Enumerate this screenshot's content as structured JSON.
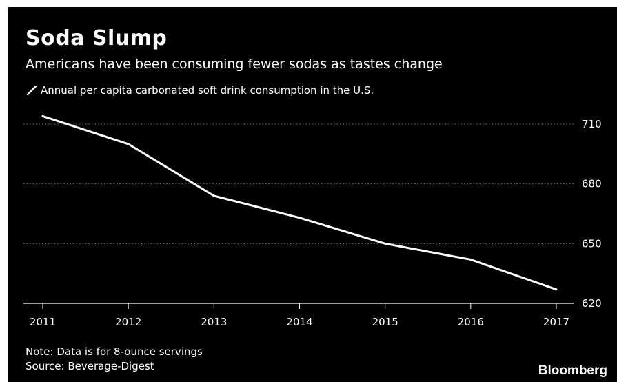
{
  "header": {
    "title": "Soda Slump",
    "subtitle": "Americans have been consuming fewer sodas as tastes change"
  },
  "footer": {
    "note": "Note: Data is for 8-ounce servings",
    "source": "Source: Beverage-Digest",
    "brand": "Bloomberg"
  },
  "colors": {
    "background": "#000000",
    "line": "#ffffff",
    "gridline": "#777777"
  },
  "chart_data": {
    "type": "line",
    "title": "Soda Slump",
    "subtitle": "Americans have been consuming fewer sodas as tastes change",
    "xlabel": "",
    "ylabel": "",
    "x": [
      2011,
      2012,
      2013,
      2014,
      2015,
      2016,
      2017
    ],
    "series": [
      {
        "name": "Annual per capita carbonated soft drink consumption in the U.S.",
        "values": [
          714,
          700,
          674,
          663,
          650,
          642,
          627
        ]
      }
    ],
    "yticks": [
      620,
      650,
      680,
      710
    ],
    "ylim": [
      620,
      710
    ],
    "y_axis_side": "right",
    "grid": true,
    "grid_style": "dotted",
    "legend_position": "top-left"
  }
}
